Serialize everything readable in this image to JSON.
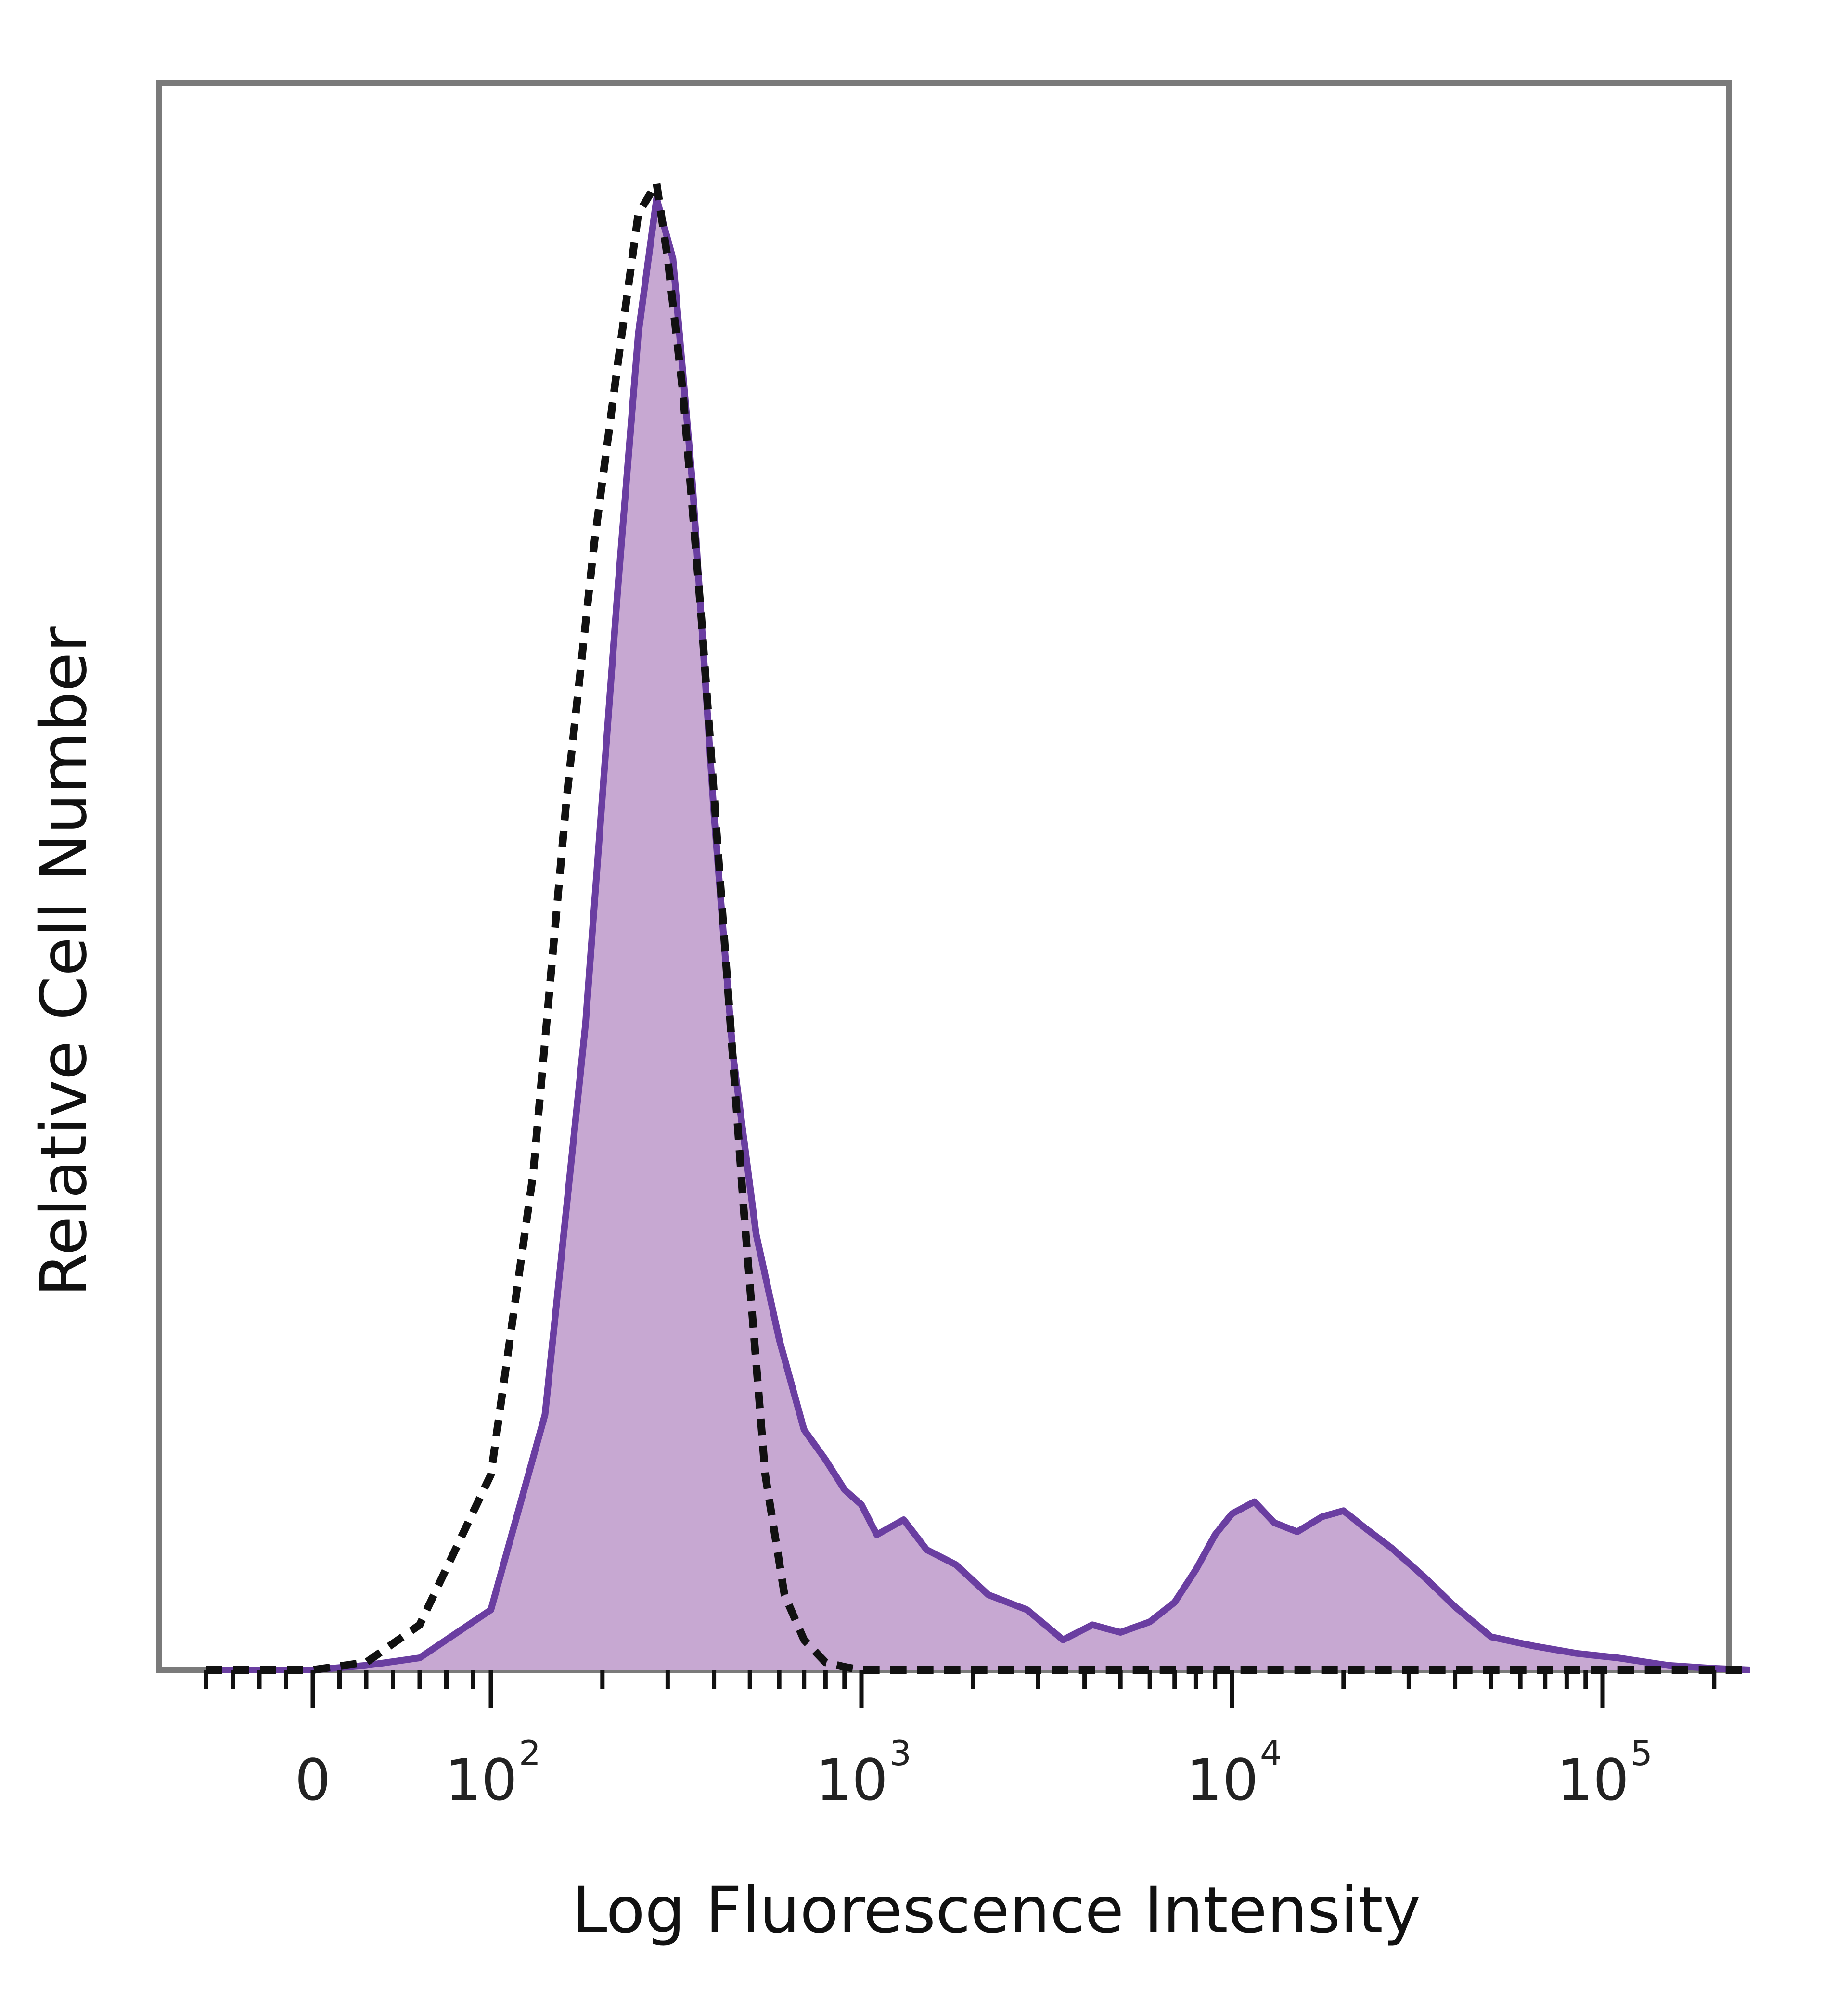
{
  "chart_data": {
    "type": "area",
    "title": "",
    "xlabel": "Log Fluorescence Intensity",
    "ylabel": "Relative Cell Number",
    "x_scale": "biexponential (linear near 0, log above 10^2)",
    "xlim": [
      -60,
      250000
    ],
    "ylim": [
      0,
      100
    ],
    "grid": false,
    "legend": "none",
    "tick_labels": [
      {
        "x": 0,
        "base": "0",
        "exp": ""
      },
      {
        "x": 100,
        "base": "10",
        "exp": "2"
      },
      {
        "x": 1000,
        "base": "10",
        "exp": "3"
      },
      {
        "x": 10000,
        "base": "10",
        "exp": "4"
      },
      {
        "x": 100000,
        "base": "10",
        "exp": "5"
      }
    ],
    "series": [
      {
        "style": "filled-solid",
        "fill": "#c7a8d2",
        "stroke": "#6a3ea1",
        "x": [
          -60,
          -30,
          0,
          30,
          60,
          100,
          140,
          180,
          220,
          250,
          280,
          310,
          350,
          400,
          450,
          520,
          600,
          700,
          800,
          900,
          1000,
          1100,
          1300,
          1500,
          1800,
          2200,
          2800,
          3500,
          4200,
          5000,
          6000,
          7000,
          8000,
          9000,
          10000,
          11500,
          13000,
          15000,
          17500,
          20000,
          23000,
          27000,
          33000,
          40000,
          50000,
          65000,
          85000,
          110000,
          150000,
          200000,
          250000
        ],
        "y": [
          0,
          0,
          0,
          0.3,
          0.8,
          4,
          17,
          43,
          72,
          89,
          98,
          94,
          79,
          57,
          41,
          29,
          22,
          16,
          14,
          12,
          11,
          9,
          10,
          8,
          7,
          5,
          4,
          2,
          3,
          2.5,
          3.2,
          4.5,
          6.7,
          9,
          10.4,
          11.2,
          9.8,
          9.2,
          10.2,
          10.6,
          9.4,
          8.1,
          6.2,
          4.2,
          2.2,
          1.6,
          1.1,
          0.8,
          0.3,
          0.1,
          0
        ]
      },
      {
        "style": "dashed",
        "stroke": "#111111",
        "x": [
          -60,
          -30,
          0,
          30,
          60,
          100,
          130,
          160,
          190,
          220,
          250,
          280,
          300,
          330,
          370,
          420,
          480,
          550,
          620,
          700,
          800,
          900,
          1000,
          2000,
          10000,
          100000,
          250000
        ],
        "y": [
          0,
          0,
          0,
          0.5,
          3,
          13,
          33,
          58,
          75,
          87,
          97,
          99,
          94,
          85,
          70,
          51,
          31,
          13,
          5,
          2,
          0.5,
          0.2,
          0,
          0,
          0,
          0,
          0
        ]
      }
    ]
  }
}
